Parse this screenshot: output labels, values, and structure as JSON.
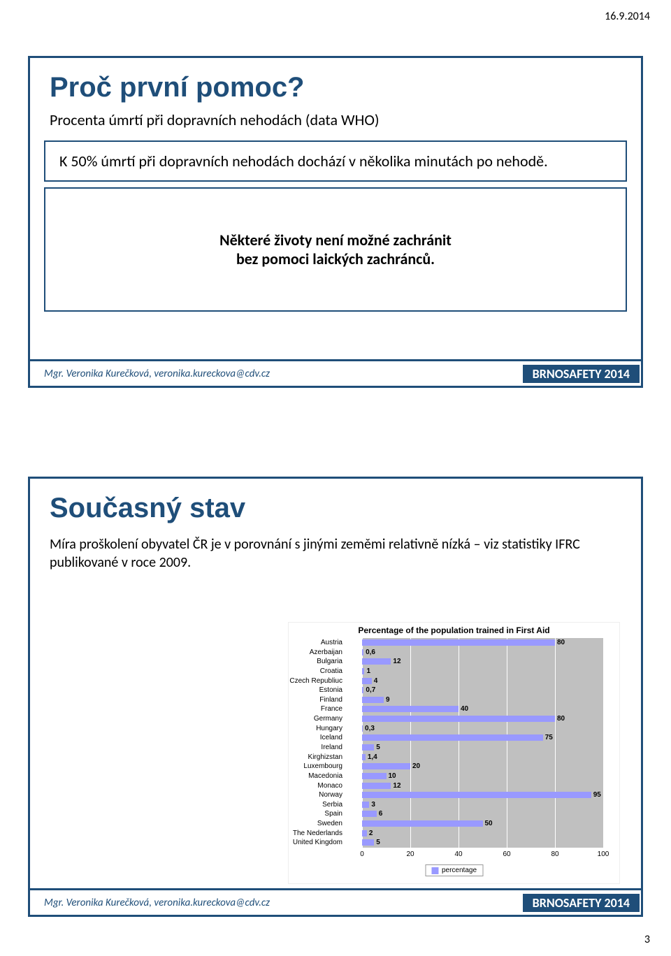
{
  "page": {
    "date": "16.9.2014",
    "num": "3"
  },
  "footer": {
    "author": "Mgr. Veronika Kurečková, veronika.kureckova@cdv.cz",
    "conf": "BRNOSAFETY 2014"
  },
  "slide1": {
    "title": "Proč první pomoc?",
    "subtitle": "Procenta úmrtí při dopravních nehodách  (data WHO)",
    "box1": "K 50% úmrtí při dopravních nehodách dochází v několika minutách po nehodě.",
    "box2a": "Některé životy není možné zachránit",
    "box2b": "bez pomoci laických zachránců."
  },
  "slide2": {
    "title": "Současný stav",
    "body": "Míra proškolení obyvatel ČR je v porovnání s jinými zeměmi relativně nízká – viz statistiky IFRC publikované v roce 2009."
  },
  "chart": {
    "type": "bar-horizontal",
    "title": "Percentage of the population trained in First Aid",
    "xmax": 100,
    "xticks": [
      0,
      20,
      40,
      60,
      80,
      100
    ],
    "bar_color": "#9999ff",
    "plot_bg": "#c0c0c0",
    "grid_color": "#ffffff",
    "legend": "percentage",
    "countries": [
      "Austria",
      "Azerbaijan",
      "Bulgaria",
      "Croatia",
      "Czech Republiuc",
      "Estonia",
      "Finland",
      "France",
      "Germany",
      "Hungary",
      "Iceland",
      "Ireland",
      "Kirghizstan",
      "Luxembourg",
      "Macedonia",
      "Monaco",
      "Norway",
      "Serbia",
      "Spain",
      "Sweden",
      "The Nederlands",
      "United Kingdom"
    ],
    "values": [
      80,
      0.6,
      12,
      1,
      4,
      0.7,
      9,
      40,
      80,
      0.3,
      75,
      5,
      1.4,
      20,
      10,
      12,
      95,
      3,
      6,
      50,
      2,
      5
    ]
  }
}
